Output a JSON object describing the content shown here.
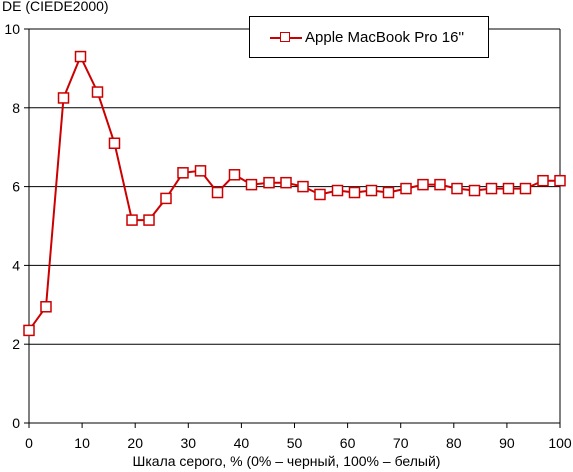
{
  "chart_data": {
    "type": "line",
    "title": "",
    "ylabel": "DE (CIEDE2000)",
    "xlabel": "Шкала серого, % (0% – черный, 100% – белый)",
    "xlim": [
      0,
      100
    ],
    "ylim": [
      0,
      10
    ],
    "x_ticks": [
      0,
      10,
      20,
      30,
      40,
      50,
      60,
      70,
      80,
      90,
      100
    ],
    "y_ticks": [
      0,
      2,
      4,
      6,
      8,
      10
    ],
    "grid": "horizontal",
    "legend_position": "top-right",
    "series": [
      {
        "name": "Apple MacBook Pro 16''",
        "color": "#cc0000",
        "marker": "square",
        "x": [
          0,
          3.2,
          6.5,
          9.7,
          12.9,
          16.1,
          19.4,
          22.6,
          25.8,
          29.0,
          32.3,
          35.5,
          38.7,
          41.9,
          45.2,
          48.4,
          51.6,
          54.8,
          58.1,
          61.3,
          64.5,
          67.7,
          71.0,
          74.2,
          77.4,
          80.6,
          83.9,
          87.1,
          90.3,
          93.5,
          96.8,
          100
        ],
        "y": [
          2.35,
          2.95,
          8.25,
          9.3,
          8.4,
          7.1,
          5.15,
          5.15,
          5.7,
          6.35,
          6.4,
          5.85,
          6.3,
          6.05,
          6.1,
          6.1,
          6.0,
          5.8,
          5.9,
          5.85,
          5.9,
          5.85,
          5.95,
          6.05,
          6.05,
          5.95,
          5.9,
          5.95,
          5.95,
          5.95,
          6.15,
          6.15
        ]
      }
    ]
  }
}
